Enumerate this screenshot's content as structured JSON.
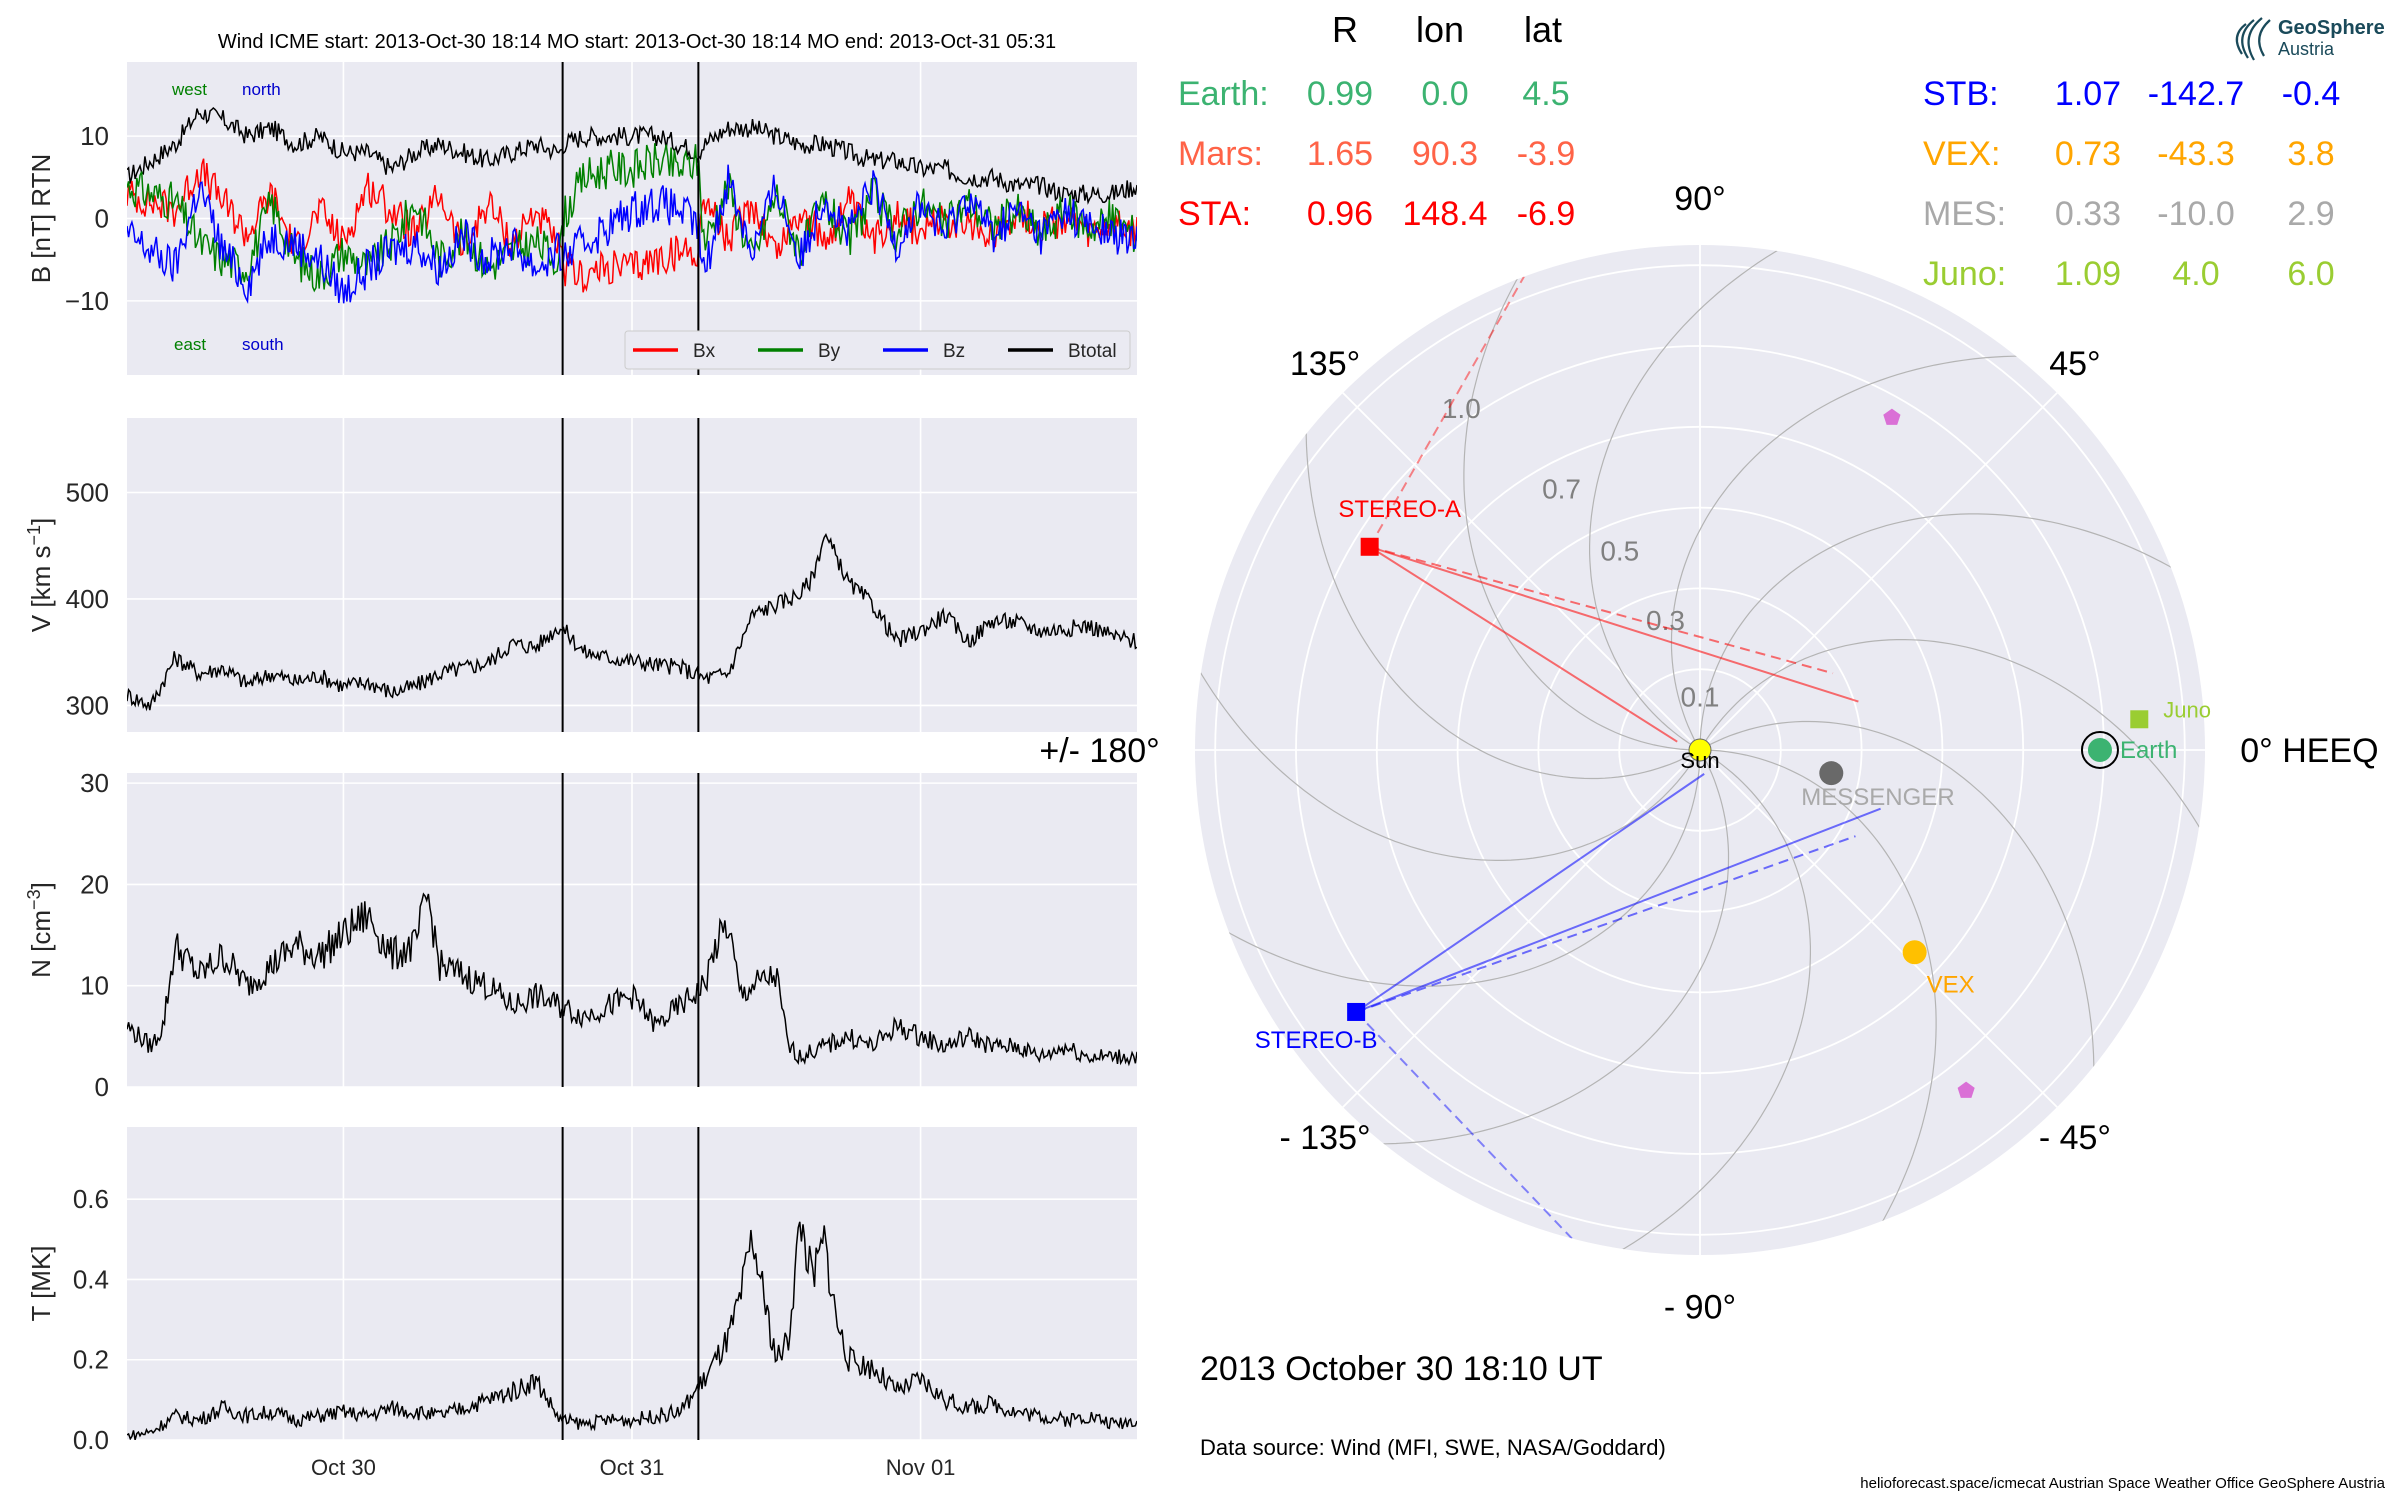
{
  "header": {
    "title": "Wind    ICME start: 2013-Oct-30 18:14   MO start: 2013-Oct-30 18:14   MO end: 2013-Oct-31 05:31"
  },
  "positions_table": {
    "col_headers": [
      "R",
      "lon",
      "lat"
    ],
    "left": [
      {
        "name": "Earth:",
        "R": "0.99",
        "lon": "0.0",
        "lat": "4.5",
        "color": "#3cb371"
      },
      {
        "name": "Mars:",
        "R": "1.65",
        "lon": "90.3",
        "lat": "-3.9",
        "color": "#ff6347"
      },
      {
        "name": "STA:",
        "R": "0.96",
        "lon": "148.4",
        "lat": "-6.9",
        "color": "#ff0000"
      }
    ],
    "right": [
      {
        "name": "STB:",
        "R": "1.07",
        "lon": "-142.7",
        "lat": "-0.4",
        "color": "#0000ff"
      },
      {
        "name": "VEX:",
        "R": "0.73",
        "lon": "-43.3",
        "lat": "3.8",
        "color": "#ffa500"
      },
      {
        "name": "MES:",
        "R": "0.33",
        "lon": "-10.0",
        "lat": "2.9",
        "color": "#a9a9a9"
      },
      {
        "name": "Juno:",
        "R": "1.09",
        "lon": "4.0",
        "lat": "6.0",
        "color": "#9acd32"
      }
    ]
  },
  "logo": {
    "line1": "GeoSphere",
    "line2": "Austria"
  },
  "date_label": "2013 October 30  18:10 UT",
  "data_source": "Data source: Wind (MFI, SWE, NASA/Goddard)",
  "footer": "helioforecast.space/icmecat   Austrian Space Weather Office   GeoSphere Austria",
  "chart_data": [
    {
      "type": "line",
      "panel": "B",
      "ylabel": "B [nT] RTN",
      "ylim": [
        -19,
        19
      ],
      "yticks": [
        -10,
        0,
        10
      ],
      "xticks": [
        "Oct 30",
        "Oct 31",
        "Nov 01"
      ],
      "xtick_hours": [
        24,
        48,
        72
      ],
      "xlim_hours": [
        6,
        90
      ],
      "event_lines_hours": [
        42.23,
        53.52
      ],
      "annotations": {
        "top_left": [
          "west",
          "north"
        ],
        "bottom_left": [
          "east",
          "south"
        ]
      },
      "legend": {
        "placement": "lower-right",
        "entries": [
          "Bx",
          "By",
          "Bz",
          "Btotal"
        ]
      },
      "series": [
        {
          "name": "Btotal",
          "color": "#000000",
          "x": [
            6,
            10,
            12,
            14,
            16,
            18,
            20,
            22,
            24,
            26,
            28,
            30,
            32,
            34,
            36,
            38,
            40,
            42,
            42.23,
            44,
            46,
            48,
            50,
            52,
            53.5,
            54,
            56,
            58,
            60,
            62,
            64,
            66,
            68,
            70,
            72,
            74,
            76,
            78,
            80,
            82,
            84,
            86,
            88,
            90
          ],
          "y": [
            5,
            9,
            13,
            12,
            10,
            11,
            9,
            10,
            8,
            8,
            6,
            8,
            9,
            8,
            7,
            8,
            9,
            8,
            9,
            10,
            10,
            10,
            10,
            9,
            8,
            9,
            11,
            11,
            10,
            9,
            9,
            8,
            7,
            7,
            6,
            6,
            5,
            5,
            4,
            4,
            3,
            3,
            3,
            4
          ]
        },
        {
          "name": "Bx",
          "color": "#ff0000",
          "x": [
            6,
            10,
            12,
            14,
            16,
            18,
            20,
            22,
            24,
            26,
            28,
            30,
            32,
            34,
            36,
            38,
            40,
            42,
            42.23,
            44,
            46,
            48,
            50,
            52,
            53.5,
            54,
            56,
            58,
            60,
            62,
            64,
            66,
            68,
            70,
            72,
            74,
            76,
            78,
            80,
            82,
            84,
            86,
            88,
            90
          ],
          "y": [
            3,
            1,
            6,
            2,
            -2,
            3,
            -4,
            1,
            -3,
            4,
            1,
            -2,
            3,
            -4,
            2,
            -3,
            1,
            -4,
            -6,
            -7,
            -6,
            -6,
            -5,
            -4,
            -4,
            3,
            -3,
            2,
            -4,
            1,
            -3,
            2,
            -3,
            1,
            -2,
            0,
            -1,
            -2,
            1,
            -1,
            0,
            -2,
            -1,
            -2
          ]
        },
        {
          "name": "By",
          "color": "#008000",
          "x": [
            6,
            10,
            12,
            14,
            16,
            18,
            20,
            22,
            24,
            26,
            28,
            30,
            32,
            34,
            36,
            38,
            40,
            42,
            42.23,
            44,
            46,
            48,
            50,
            52,
            53.5,
            54,
            56,
            58,
            60,
            62,
            64,
            66,
            68,
            70,
            72,
            74,
            76,
            78,
            80,
            82,
            84,
            86,
            88,
            90
          ],
          "y": [
            4,
            2,
            -3,
            -5,
            -6,
            2,
            -5,
            -7,
            -4,
            -6,
            -3,
            2,
            -5,
            -2,
            -6,
            -4,
            -3,
            -5,
            0,
            5,
            6,
            6,
            7,
            6,
            7,
            -3,
            4,
            -5,
            3,
            -4,
            2,
            -3,
            3,
            -2,
            2,
            -1,
            2,
            -1,
            1,
            -2,
            1,
            -1,
            0,
            -2
          ]
        },
        {
          "name": "Bz",
          "color": "#0000ff",
          "x": [
            6,
            10,
            12,
            14,
            16,
            18,
            20,
            22,
            24,
            26,
            28,
            30,
            32,
            34,
            36,
            38,
            40,
            42,
            42.23,
            44,
            46,
            48,
            50,
            52,
            53.5,
            54,
            56,
            58,
            60,
            62,
            64,
            66,
            68,
            70,
            72,
            74,
            76,
            78,
            80,
            82,
            84,
            86,
            88,
            90
          ],
          "y": [
            -2,
            -6,
            4,
            -4,
            -8,
            -2,
            -3,
            -5,
            -9,
            -6,
            -4,
            -3,
            -6,
            -2,
            -5,
            -3,
            -6,
            -4,
            -5,
            -3,
            -1,
            1,
            2,
            1,
            -1,
            -7,
            5,
            -4,
            4,
            -5,
            3,
            -2,
            4,
            -3,
            2,
            -2,
            3,
            -2,
            1,
            -2,
            1,
            -1,
            -2,
            -3
          ]
        }
      ]
    },
    {
      "type": "line",
      "panel": "V",
      "ylabel": "V [km s^-1]",
      "ylim": [
        275,
        570
      ],
      "yticks": [
        300,
        400,
        500
      ],
      "xticks": [
        "Oct 30",
        "Oct 31",
        "Nov 01"
      ],
      "xtick_hours": [
        24,
        48,
        72
      ],
      "xlim_hours": [
        6,
        90
      ],
      "event_lines_hours": [
        42.23,
        53.52
      ],
      "series": [
        {
          "name": "V",
          "color": "#000000",
          "x": [
            6,
            8,
            10,
            12,
            14,
            16,
            18,
            20,
            22,
            24,
            26,
            28,
            30,
            32,
            34,
            36,
            38,
            40,
            42,
            44,
            46,
            48,
            50,
            52,
            54,
            56,
            58,
            60,
            62,
            63,
            64,
            65,
            66,
            68,
            70,
            72,
            74,
            76,
            78,
            80,
            82,
            84,
            86,
            88,
            90
          ],
          "y": [
            310,
            300,
            345,
            330,
            335,
            320,
            330,
            322,
            328,
            318,
            322,
            312,
            318,
            330,
            335,
            340,
            358,
            355,
            375,
            350,
            345,
            342,
            338,
            336,
            325,
            330,
            385,
            395,
            405,
            420,
            460,
            440,
            415,
            395,
            360,
            370,
            385,
            360,
            380,
            378,
            370,
            372,
            375,
            365,
            360
          ]
        }
      ]
    },
    {
      "type": "line",
      "panel": "N",
      "ylabel": "N [cm^-3]",
      "ylim": [
        0,
        31
      ],
      "yticks": [
        0,
        10,
        20,
        30
      ],
      "xticks": [
        "Oct 30",
        "Oct 31",
        "Nov 01"
      ],
      "xtick_hours": [
        24,
        48,
        72
      ],
      "xlim_hours": [
        6,
        90
      ],
      "event_lines_hours": [
        42.23,
        53.52
      ],
      "series": [
        {
          "name": "N",
          "color": "#000000",
          "x": [
            6,
            8,
            9,
            10,
            12,
            14,
            16,
            18,
            20,
            22,
            24,
            26,
            28,
            30,
            31,
            32,
            34,
            36,
            38,
            40,
            42,
            44,
            46,
            48,
            50,
            52,
            54,
            55,
            56,
            57,
            58,
            60,
            61,
            62,
            64,
            66,
            68,
            70,
            72,
            74,
            76,
            78,
            80,
            82,
            84,
            86,
            88,
            90
          ],
          "y": [
            6,
            4,
            6,
            14,
            11,
            13,
            10,
            12,
            14,
            13,
            15,
            17,
            13,
            14,
            19,
            12,
            11,
            10,
            8,
            9,
            8,
            7,
            8,
            9,
            6,
            8,
            10,
            14,
            16,
            9,
            10,
            11,
            4,
            3,
            4,
            5,
            4,
            6,
            5,
            4,
            5,
            4,
            4,
            3,
            4,
            3,
            3,
            3
          ]
        }
      ]
    },
    {
      "type": "line",
      "panel": "T",
      "ylabel": "T [MK]",
      "ylim": [
        0,
        0.78
      ],
      "yticks": [
        0.0,
        0.2,
        0.4,
        0.6
      ],
      "xticks": [
        "Oct 30",
        "Oct 31",
        "Nov 01"
      ],
      "xtick_hours": [
        24,
        48,
        72
      ],
      "xlim_hours": [
        6,
        90
      ],
      "event_lines_hours": [
        42.23,
        53.52
      ],
      "series": [
        {
          "name": "T",
          "color": "#000000",
          "x": [
            6,
            8,
            10,
            12,
            14,
            16,
            18,
            20,
            22,
            24,
            26,
            28,
            30,
            32,
            34,
            36,
            38,
            40,
            42,
            44,
            46,
            48,
            50,
            52,
            54,
            56,
            57,
            58,
            59,
            60,
            61,
            62,
            63,
            64,
            65,
            66,
            68,
            70,
            72,
            74,
            76,
            78,
            80,
            82,
            84,
            86,
            88,
            90
          ],
          "y": [
            0.01,
            0.02,
            0.06,
            0.05,
            0.08,
            0.06,
            0.07,
            0.05,
            0.06,
            0.07,
            0.06,
            0.08,
            0.07,
            0.06,
            0.08,
            0.1,
            0.12,
            0.15,
            0.05,
            0.04,
            0.05,
            0.05,
            0.06,
            0.07,
            0.15,
            0.25,
            0.35,
            0.5,
            0.35,
            0.2,
            0.25,
            0.55,
            0.4,
            0.5,
            0.3,
            0.2,
            0.18,
            0.12,
            0.15,
            0.1,
            0.08,
            0.09,
            0.07,
            0.06,
            0.05,
            0.06,
            0.04,
            0.05
          ]
        }
      ]
    },
    {
      "type": "scatter",
      "panel": "polar",
      "projection": "polar",
      "r_max": 1.25,
      "r_ticks": [
        "0.1",
        "0.3",
        "0.5",
        "0.7",
        "1.0"
      ],
      "angle_labels": [
        "0° HEEQ",
        "45°",
        "90°",
        "135°",
        "+/- 180°",
        "- 135°",
        "- 90°",
        "- 45°"
      ],
      "bodies": [
        {
          "label": "Sun",
          "r": 0,
          "lon": 0,
          "color": "#ffff00",
          "marker": "circle"
        },
        {
          "label": "Earth",
          "r": 0.99,
          "lon": 0.0,
          "color": "#3cb371",
          "marker": "circle"
        },
        {
          "label": "Juno",
          "r": 1.09,
          "lon": 4.0,
          "color": "#9acd32",
          "marker": "square"
        },
        {
          "label": "STEREO-A",
          "r": 0.96,
          "lon": 148.4,
          "color": "#ff0000",
          "marker": "square"
        },
        {
          "label": "STEREO-B",
          "r": 1.07,
          "lon": -142.7,
          "color": "#0000ff",
          "marker": "square"
        },
        {
          "label": "VEX",
          "r": 0.73,
          "lon": -43.3,
          "color": "#ffc000",
          "marker": "circle"
        },
        {
          "label": "MESSENGER",
          "r": 0.33,
          "lon": -10.0,
          "color": "#696969",
          "marker": "circle"
        },
        {
          "label": "",
          "r": 0.95,
          "lon": 60,
          "color": "#da70d6",
          "marker": "pentagon"
        },
        {
          "label": "",
          "r": 1.07,
          "lon": -52,
          "color": "#da70d6",
          "marker": "pentagon"
        }
      ]
    }
  ]
}
